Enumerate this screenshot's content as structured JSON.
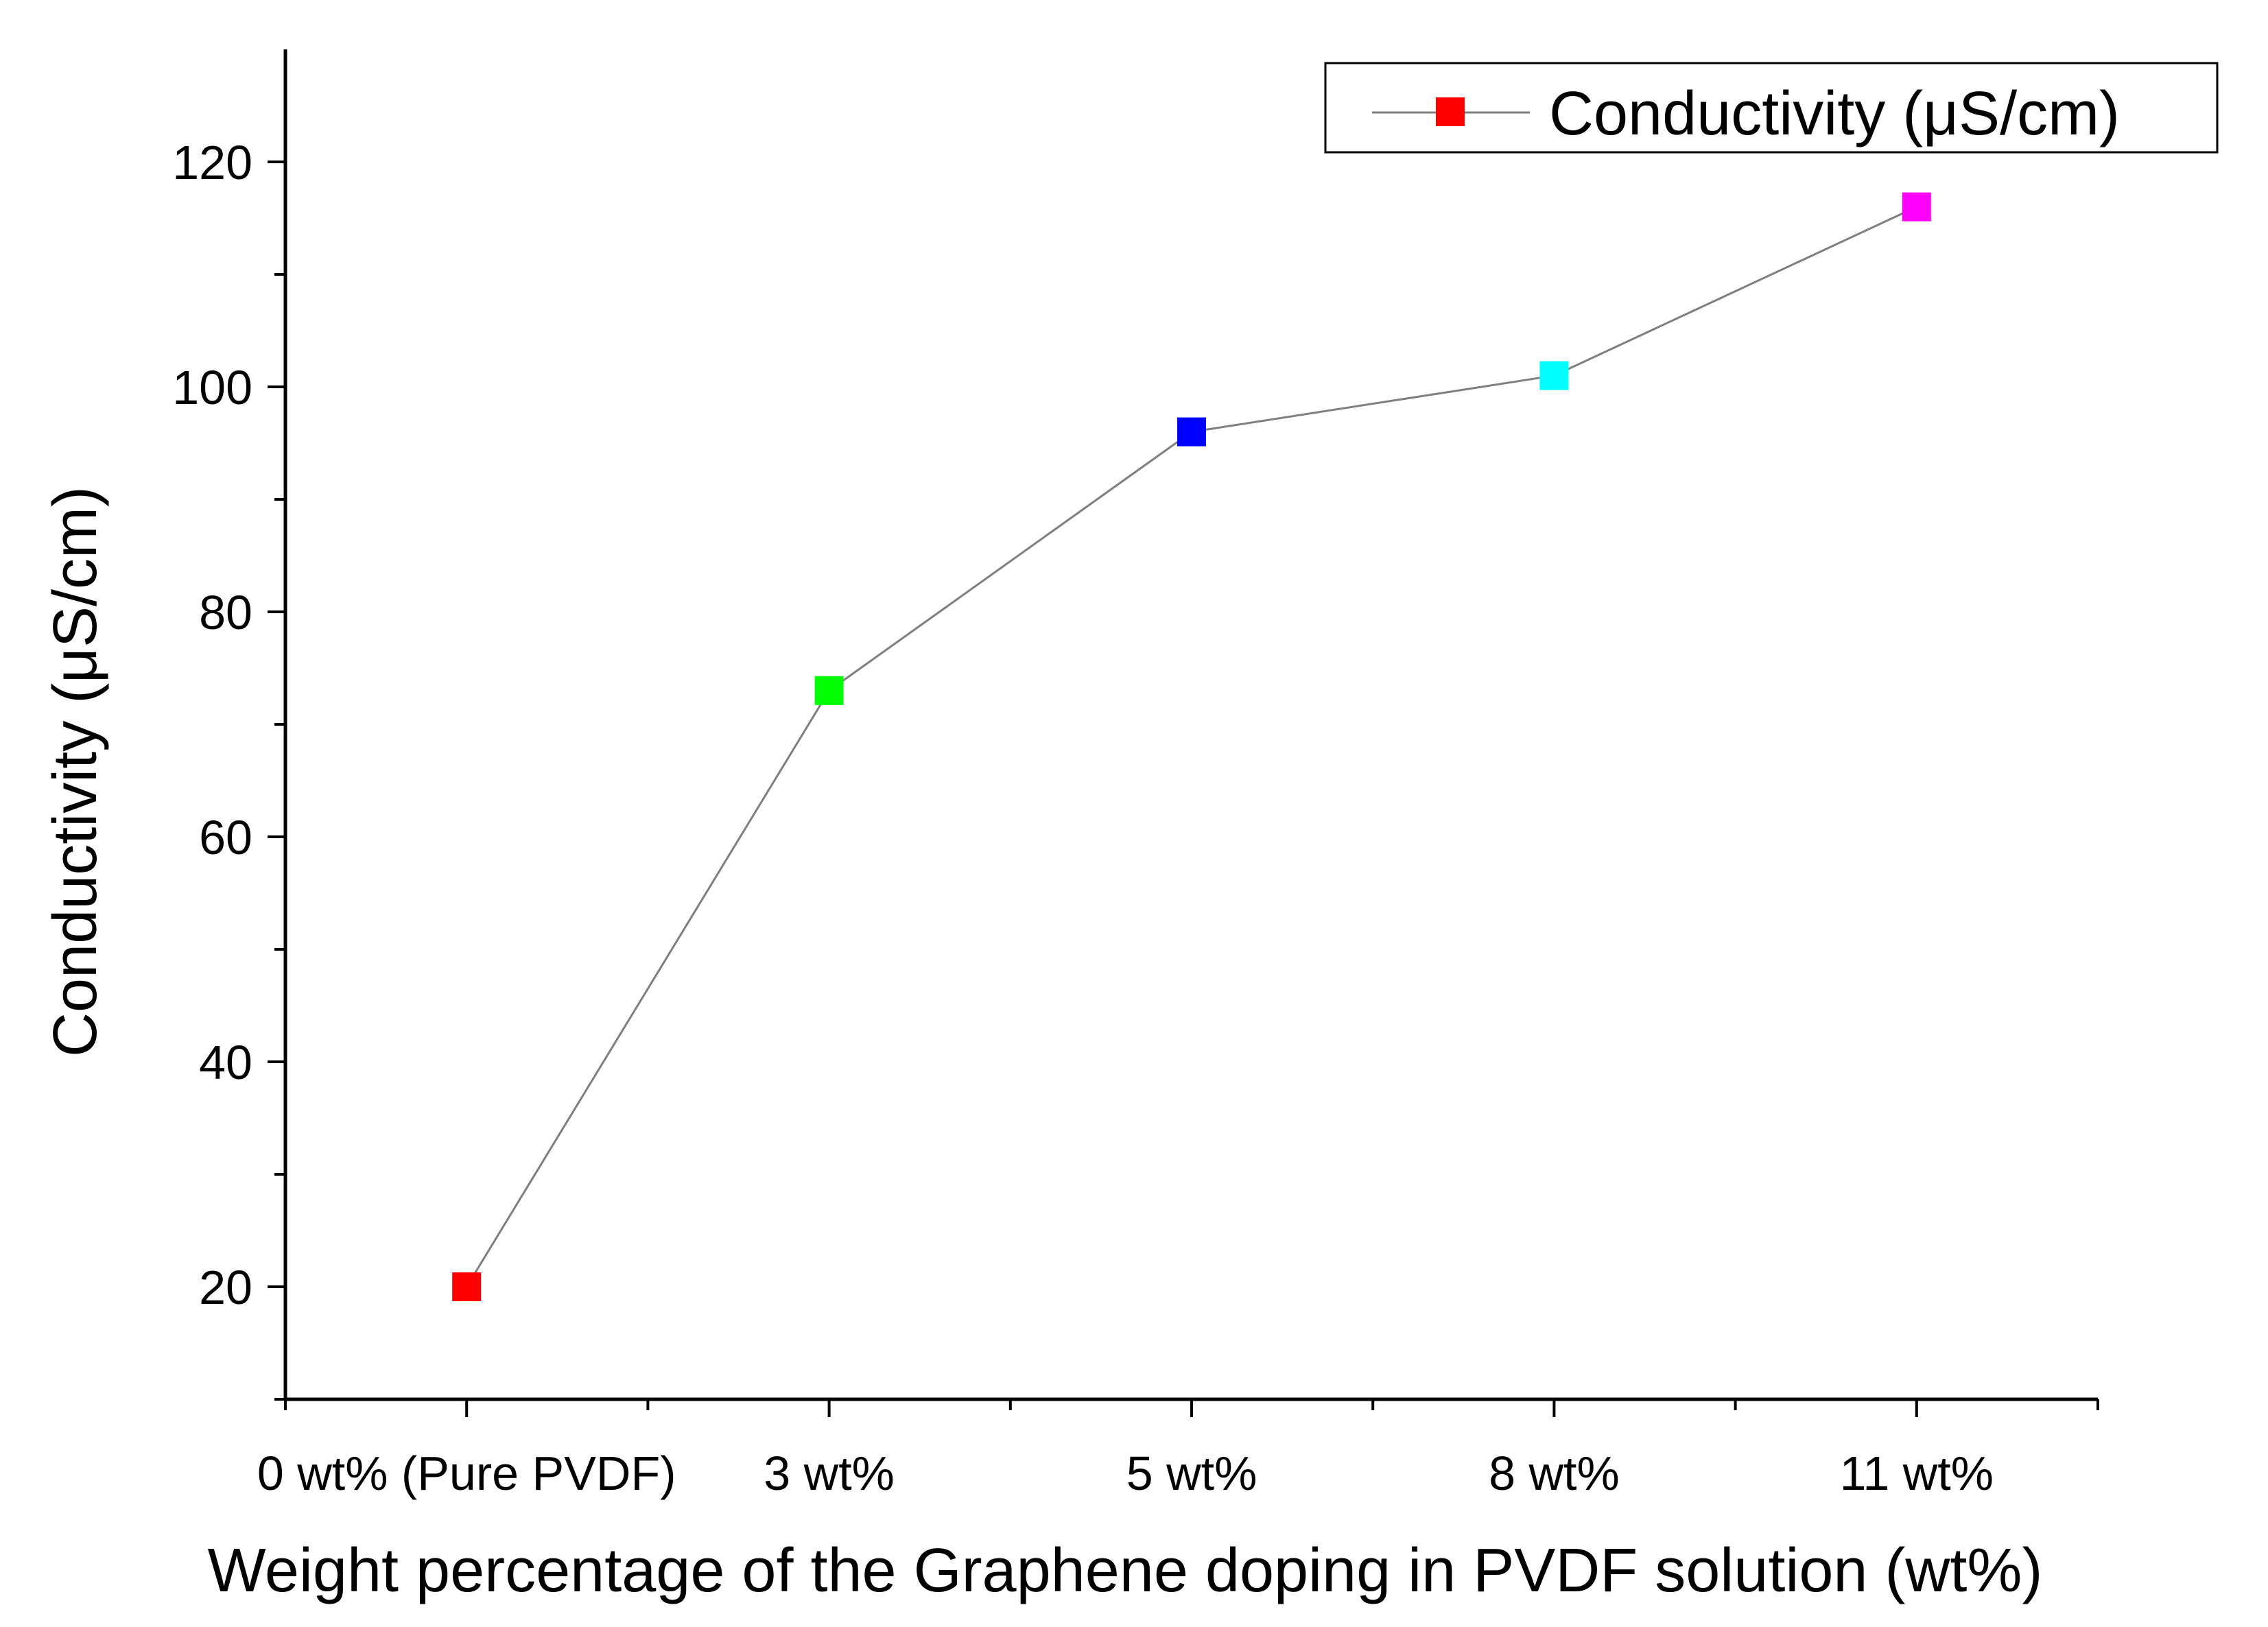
{
  "chart_data": {
    "type": "line",
    "title": "",
    "xlabel": "Weight percentage of the Graphene doping in PVDF solution (wt%)",
    "ylabel": "Conductivity (μS/cm)",
    "categories": [
      "0 wt% (Pure PVDF)",
      "3 wt%",
      "5 wt%",
      "8 wt%",
      "11 wt%"
    ],
    "series": [
      {
        "name": "Conductivity (μS/cm)",
        "values": [
          20,
          73,
          96,
          101,
          116
        ],
        "marker": "square",
        "line_color": "#7f7f7f",
        "point_colors": [
          "#ff0000",
          "#00ff00",
          "#0000ff",
          "#00ffff",
          "#ff00ff"
        ]
      }
    ],
    "ylim": [
      10,
      130
    ],
    "yticks": [
      20,
      40,
      60,
      80,
      100,
      120
    ],
    "y_minor_step": 10,
    "xlim": [
      -0.5,
      4.5
    ],
    "grid": false,
    "legend": {
      "position": "top-right",
      "marker_color": "#ff0000"
    }
  }
}
